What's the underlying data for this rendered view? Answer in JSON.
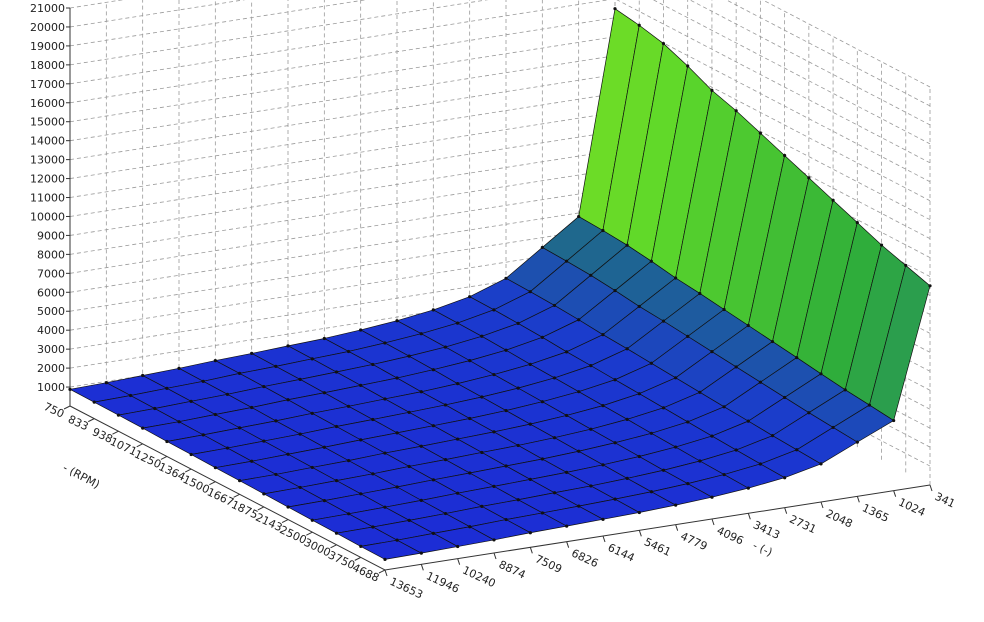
{
  "chart_data": {
    "type": "surface",
    "row_label": "- (RPM)",
    "column_label": "- (-)",
    "rows": [
      750,
      833,
      938,
      1071,
      1250,
      1364,
      1500,
      1667,
      1875,
      2143,
      2500,
      3000,
      3750,
      4688
    ],
    "columns": [
      13653,
      11946,
      10240,
      8874,
      7509,
      6826,
      6144,
      5461,
      4779,
      4096,
      3413,
      2731,
      2048,
      1365,
      1024,
      341
    ],
    "zlim": [
      0,
      21000
    ],
    "zticks": [
      1000,
      2000,
      3000,
      4000,
      5000,
      6000,
      7000,
      8000,
      9000,
      10000,
      11000,
      12000,
      13000,
      14000,
      15000,
      16000,
      17000,
      18000,
      19000,
      20000,
      21000
    ],
    "grid": true,
    "colormap": [
      "#1c28d8",
      "#1b3ccc",
      "#1f6a8a",
      "#2fae3a",
      "#5ed82a",
      "#9de81c",
      "#e8d800",
      "#f07000",
      "#e01010"
    ],
    "z": [
      [
        880,
        930,
        1010,
        1090,
        1200,
        1280,
        1380,
        1470,
        1620,
        1810,
        2080,
        2480,
        3150,
        4480,
        5810,
        16480
      ],
      [
        870,
        920,
        1000,
        1070,
        1190,
        1260,
        1360,
        1450,
        1600,
        1790,
        2050,
        2450,
        3110,
        4420,
        5740,
        16270
      ],
      [
        850,
        900,
        980,
        1050,
        1160,
        1240,
        1330,
        1430,
        1570,
        1750,
        2020,
        2400,
        3050,
        4340,
        5630,
        15970
      ],
      [
        830,
        870,
        950,
        1020,
        1130,
        1200,
        1290,
        1380,
        1520,
        1700,
        1950,
        2330,
        2960,
        4200,
        5450,
        15450
      ],
      [
        790,
        840,
        910,
        980,
        1080,
        1150,
        1240,
        1320,
        1450,
        1630,
        1870,
        2230,
        2840,
        4030,
        5230,
        14830
      ],
      [
        770,
        810,
        880,
        950,
        1050,
        1120,
        1200,
        1290,
        1410,
        1580,
        1820,
        2170,
        2760,
        3920,
        5080,
        14420
      ],
      [
        740,
        780,
        850,
        920,
        1010,
        1080,
        1160,
        1240,
        1360,
        1530,
        1760,
        2090,
        2660,
        3780,
        4900,
        13910
      ],
      [
        720,
        750,
        820,
        880,
        980,
        1040,
        1120,
        1200,
        1310,
        1470,
        1690,
        2020,
        2560,
        3640,
        4720,
        13390
      ],
      [
        690,
        730,
        790,
        850,
        940,
        1000,
        1080,
        1150,
        1260,
        1410,
        1630,
        1940,
        2460,
        3500,
        4540,
        12880
      ],
      [
        660,
        700,
        760,
        820,
        900,
        960,
        1030,
        1100,
        1210,
        1360,
        1560,
        1860,
        2360,
        3360,
        4360,
        12360
      ],
      [
        630,
        670,
        720,
        780,
        860,
        920,
        990,
        1060,
        1160,
        1300,
        1500,
        1780,
        2270,
        3220,
        4170,
        11850
      ],
      [
        610,
        640,
        690,
        750,
        830,
        880,
        950,
        1010,
        1110,
        1240,
        1430,
        1710,
        2170,
        3080,
        3990,
        11330
      ],
      [
        580,
        610,
        670,
        720,
        800,
        850,
        910,
        980,
        1070,
        1200,
        1380,
        1640,
        2090,
        2970,
        3850,
        10920
      ],
      [
        560,
        590,
        640,
        690,
        770,
        820,
        880,
        940,
        1030,
        1150,
        1330,
        1580,
        2010,
        2860,
        3700,
        10510
      ]
    ]
  }
}
